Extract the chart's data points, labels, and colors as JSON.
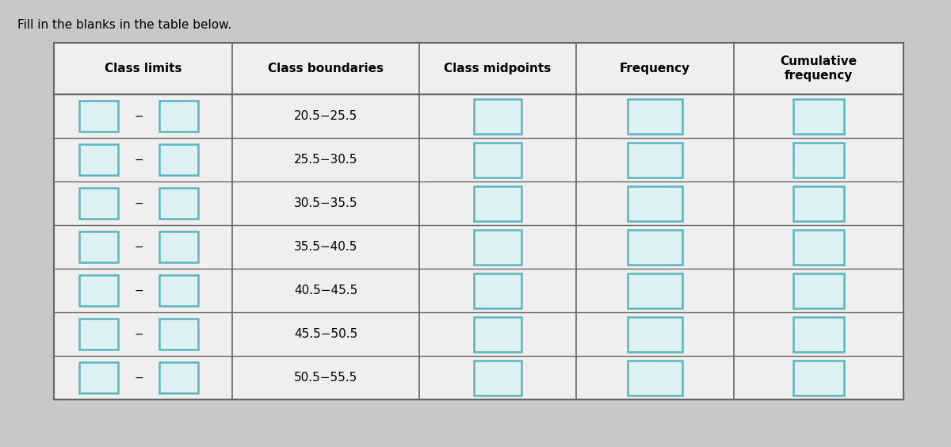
{
  "title": "Fill in the blanks in the table below.",
  "col_headers": [
    "Class limits",
    "Class boundaries",
    "Class midpoints",
    "Frequency",
    "Cumulative\nfrequency"
  ],
  "class_boundaries": [
    "20.5−25.5",
    "25.5−30.5",
    "30.5−35.5",
    "35.5−40.5",
    "40.5−45.5",
    "45.5−50.5",
    "50.5−55.5"
  ],
  "num_rows": 7,
  "bg_color": "#c8c8c8",
  "table_bg": "#f0efef",
  "header_bg": "#f0efef",
  "box_color": "#5ab5c0",
  "box_fill": "#ddf0f2",
  "table_line_color": "#666666",
  "title_fontsize": 11,
  "header_fontsize": 11,
  "cell_fontsize": 11
}
